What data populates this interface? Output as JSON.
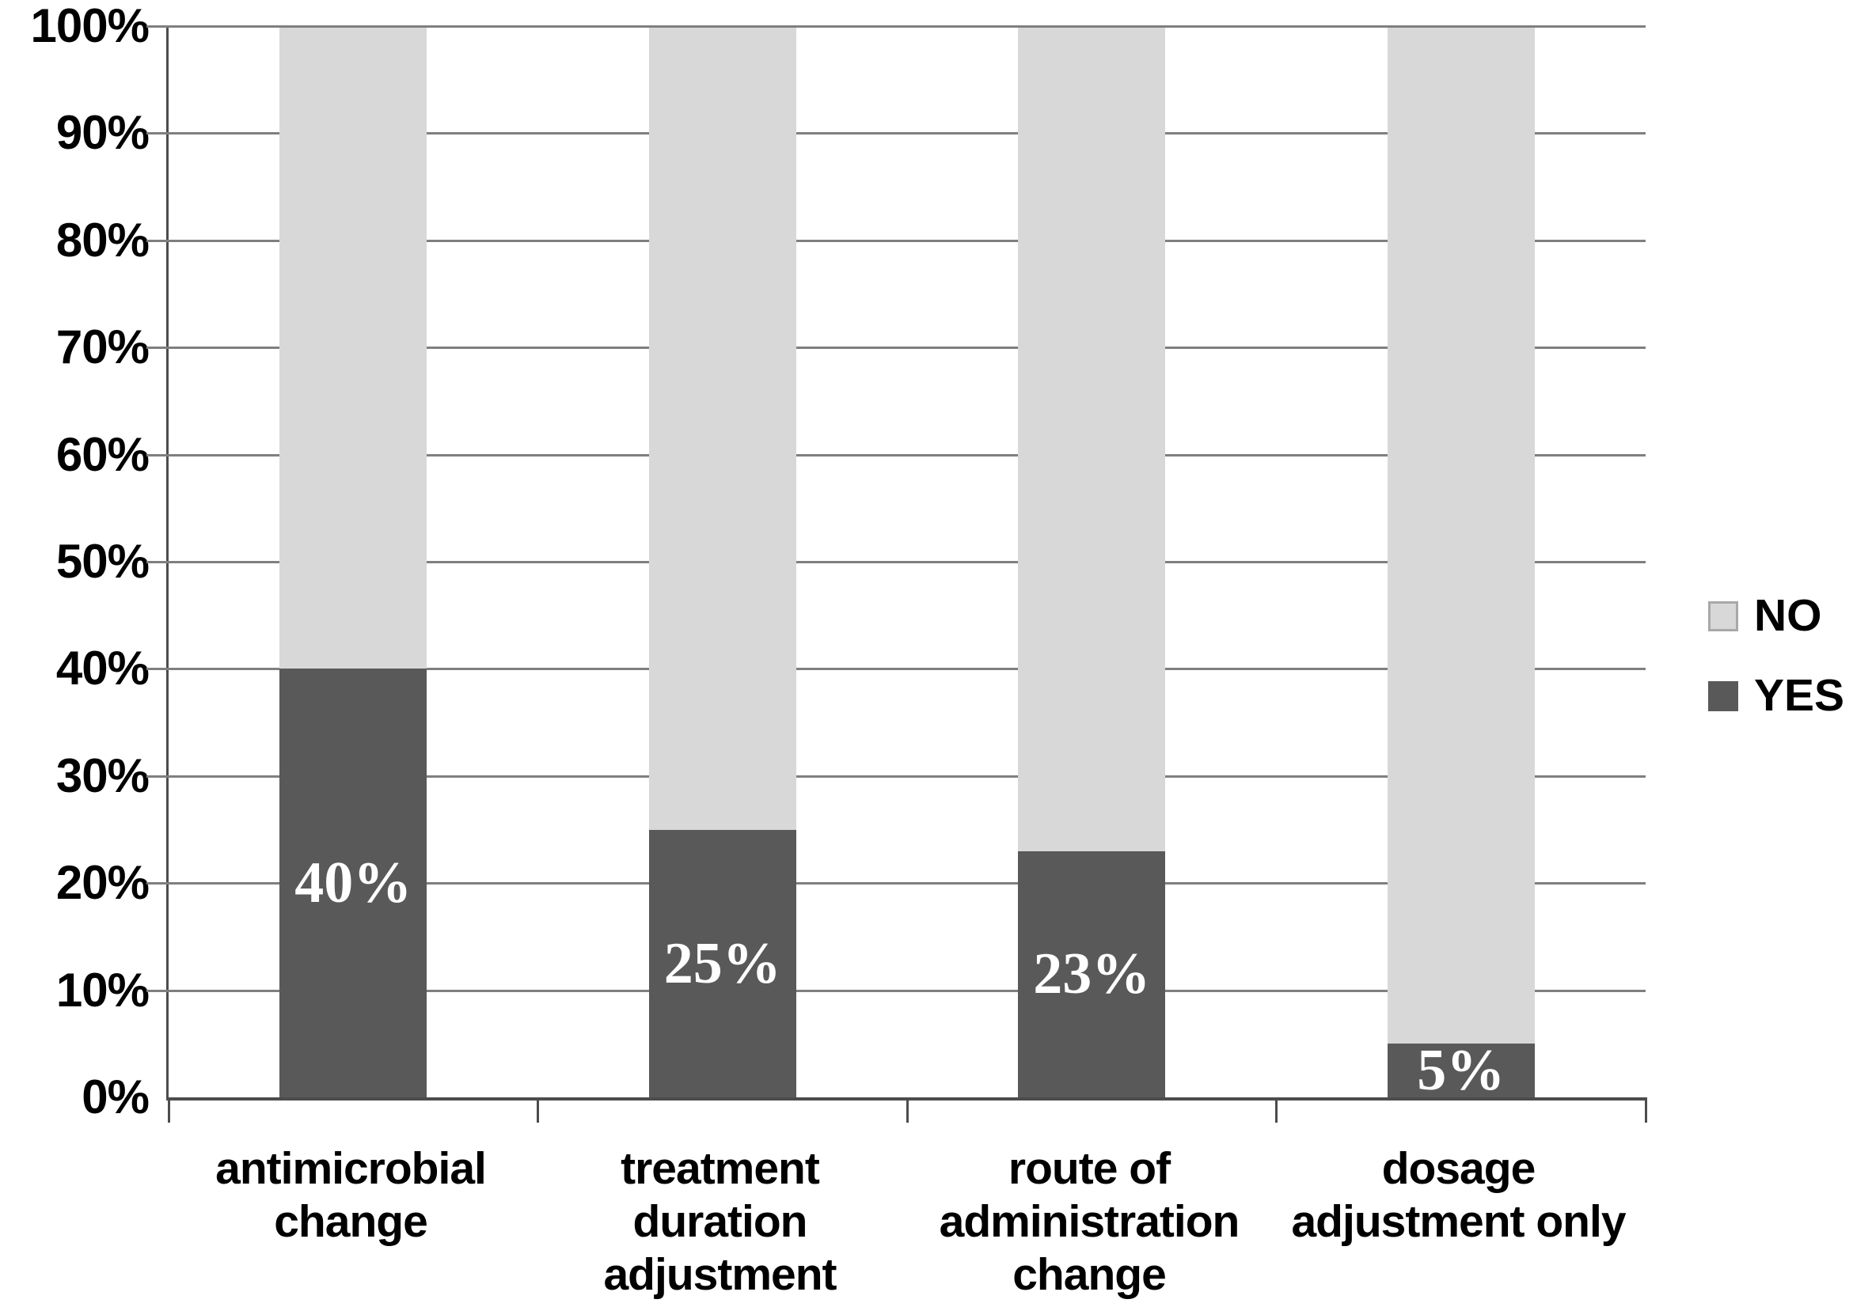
{
  "chart_data": {
    "type": "bar",
    "subtype": "stacked-100-percent-column",
    "categories": [
      "antimicrobial\nchange",
      "treatment\nduration\nadjustment",
      "route of\nadministration\nchange",
      "dosage\nadjustment only"
    ],
    "series": [
      {
        "name": "YES",
        "values": [
          40,
          25,
          23,
          5
        ],
        "labels": [
          "40%",
          "25%",
          "23%",
          "5%"
        ],
        "color": "#595959"
      },
      {
        "name": "NO",
        "values": [
          60,
          75,
          77,
          95
        ],
        "labels": [
          "",
          "",
          "",
          ""
        ],
        "color": "#d8d8d8"
      }
    ],
    "y_axis": {
      "min": 0,
      "max": 100,
      "step": 10,
      "tick_labels": [
        "0%",
        "10%",
        "20%",
        "30%",
        "40%",
        "50%",
        "60%",
        "70%",
        "80%",
        "90%",
        "100%"
      ]
    },
    "grid": true,
    "legend": {
      "position": "right",
      "entries": [
        {
          "label": "NO",
          "color": "#d8d8d8"
        },
        {
          "label": "YES",
          "color": "#595959"
        }
      ]
    },
    "colors": {
      "yes_fill": "#595959",
      "no_fill": "#d8d8d8",
      "gridline": "#7f7f7f",
      "axis": "#4c4c4c",
      "value_label_text": "#ffffff",
      "axis_text": "#000000"
    }
  }
}
